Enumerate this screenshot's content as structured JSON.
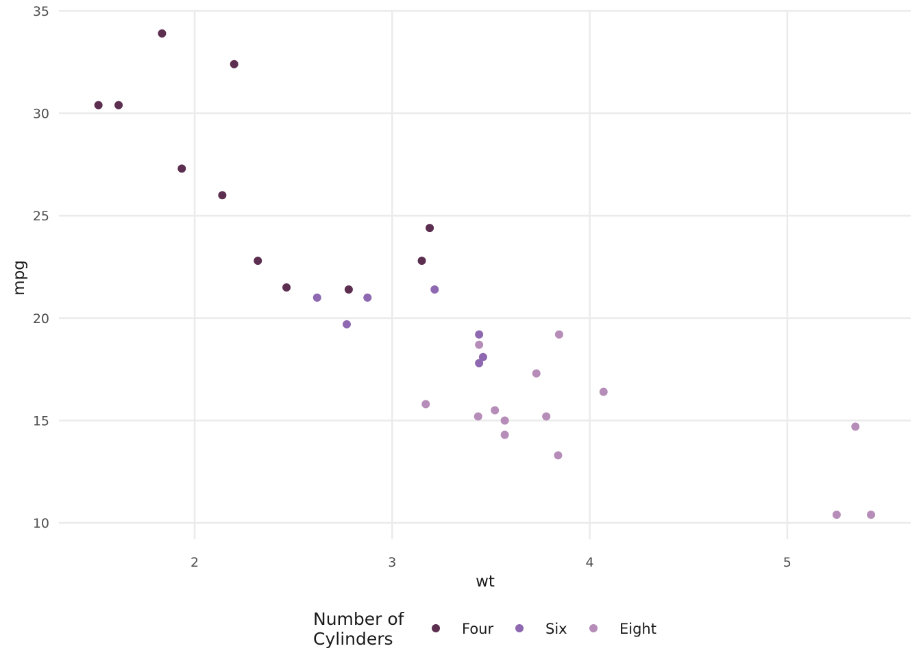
{
  "chart_data": {
    "type": "scatter",
    "title": "",
    "xlabel": "wt",
    "ylabel": "mpg",
    "xlim": [
      1.313,
      5.625
    ],
    "ylim": [
      9.2,
      35.0
    ],
    "x_ticks": [
      2,
      3,
      4,
      5
    ],
    "y_ticks": [
      10,
      15,
      20,
      25,
      30,
      35
    ],
    "grid": true,
    "legend": {
      "title_lines": [
        "Number of",
        "Cylinders"
      ],
      "position": "bottom"
    },
    "series": [
      {
        "name": "Four",
        "color": "#5c2e4f",
        "points": [
          [
            1.835,
            33.9
          ],
          [
            2.2,
            32.4
          ],
          [
            1.513,
            30.4
          ],
          [
            1.615,
            30.4
          ],
          [
            1.935,
            27.3
          ],
          [
            2.14,
            26.0
          ],
          [
            2.32,
            22.8
          ],
          [
            2.465,
            21.5
          ],
          [
            2.78,
            21.4
          ],
          [
            3.19,
            24.4
          ],
          [
            3.15,
            22.8
          ]
        ]
      },
      {
        "name": "Six",
        "color": "#8e68b0",
        "points": [
          [
            2.62,
            21.0
          ],
          [
            2.875,
            21.0
          ],
          [
            2.77,
            19.7
          ],
          [
            3.215,
            21.4
          ],
          [
            3.44,
            19.2
          ],
          [
            3.46,
            18.1
          ],
          [
            3.44,
            17.8
          ]
        ]
      },
      {
        "name": "Eight",
        "color": "#b68db8",
        "points": [
          [
            3.44,
            18.7
          ],
          [
            3.845,
            19.2
          ],
          [
            3.73,
            17.3
          ],
          [
            4.07,
            16.4
          ],
          [
            3.17,
            15.8
          ],
          [
            3.435,
            15.2
          ],
          [
            3.52,
            15.5
          ],
          [
            3.57,
            15.0
          ],
          [
            3.78,
            15.2
          ],
          [
            3.57,
            14.3
          ],
          [
            3.84,
            13.3
          ],
          [
            5.345,
            14.7
          ],
          [
            5.25,
            10.4
          ],
          [
            5.424,
            10.4
          ]
        ]
      }
    ]
  }
}
